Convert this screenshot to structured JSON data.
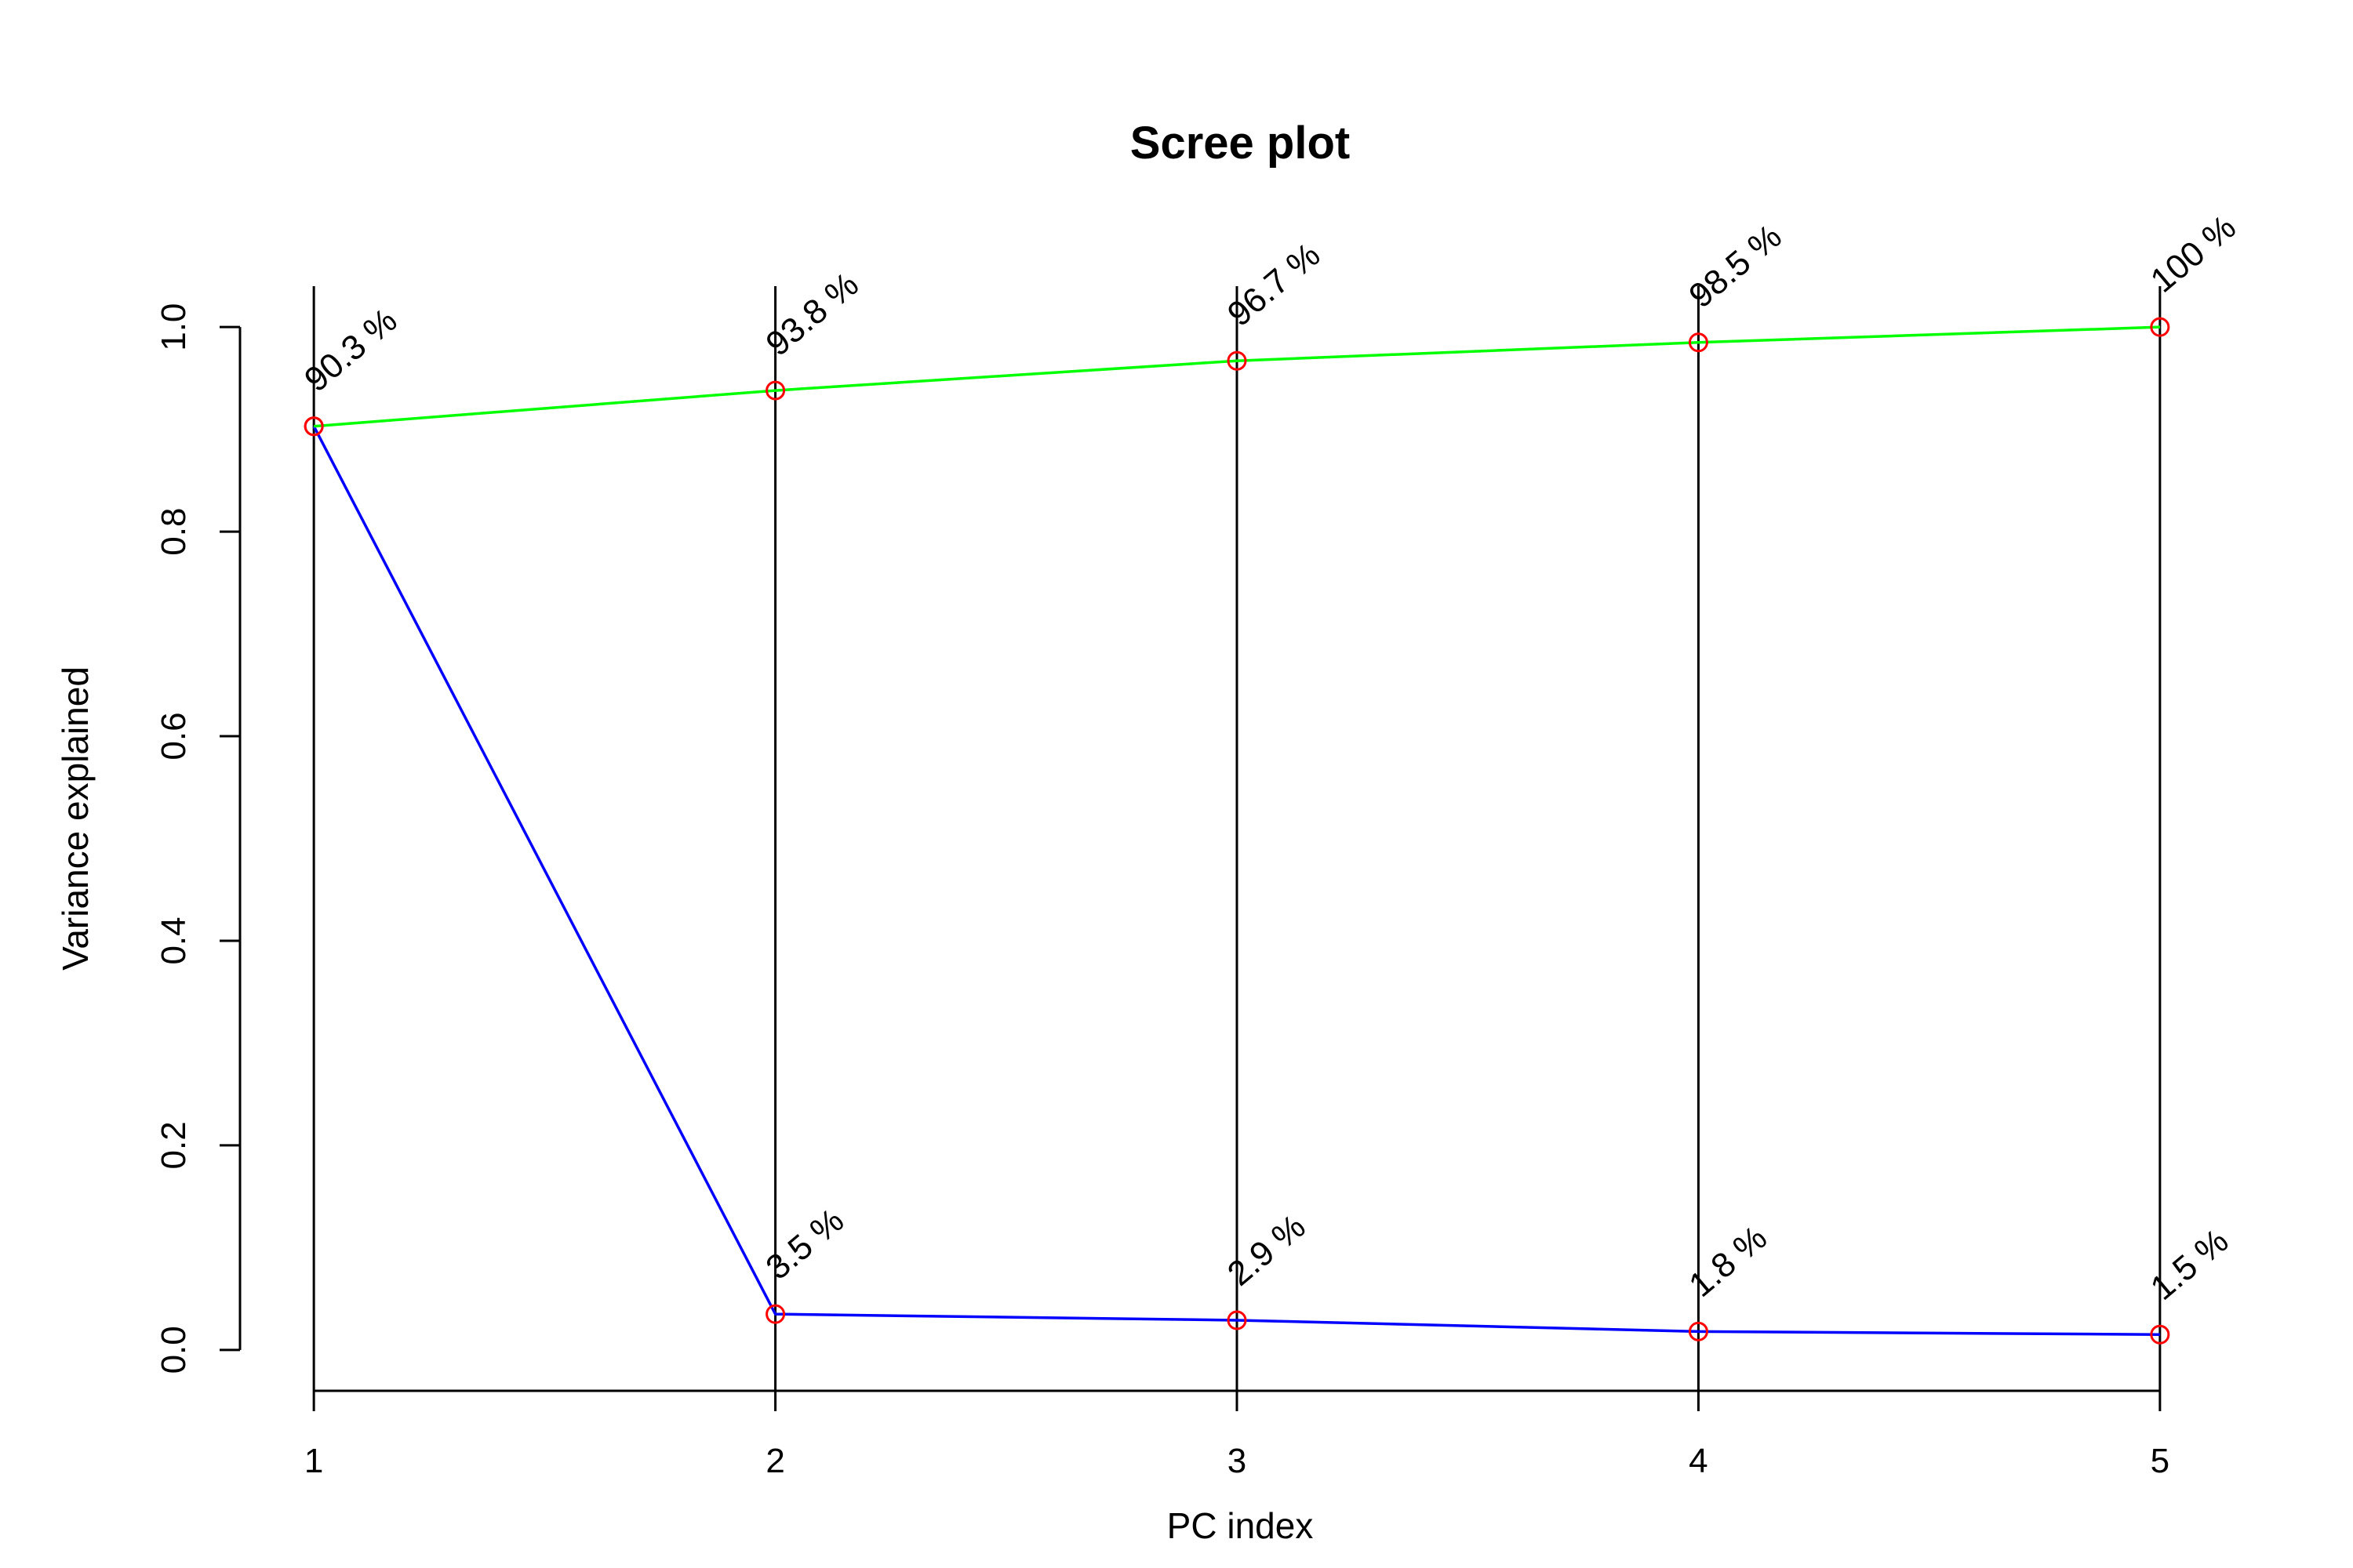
{
  "chart_data": {
    "type": "line",
    "title": "Scree plot",
    "xlabel": "PC index",
    "ylabel": "Variance explained",
    "x": [
      1,
      2,
      3,
      4,
      5
    ],
    "x_tick_labels": [
      "1",
      "2",
      "3",
      "4",
      "5"
    ],
    "y_tick_labels": [
      "0.0",
      "0.2",
      "0.4",
      "0.6",
      "0.8",
      "1.0"
    ],
    "y_ticks": [
      0.0,
      0.2,
      0.4,
      0.6,
      0.8,
      1.0
    ],
    "xlim": [
      0.84,
      5.16
    ],
    "ylim": [
      -0.04,
      1.04
    ],
    "grid": false,
    "vertical_lines_at_x": true,
    "series": [
      {
        "values": [
          0.903,
          0.035,
          0.029,
          0.018,
          0.015
        ],
        "labels": [
          "",
          "3.5 %",
          "2.9 %",
          "1.8 %",
          "1.5 %"
        ],
        "line_color": "#0000ff",
        "point_color": "#ff0000"
      },
      {
        "values": [
          0.903,
          0.938,
          0.967,
          0.985,
          1.0
        ],
        "labels": [
          "90.3 %",
          "93.8 %",
          "96.7 %",
          "98.5 %",
          "100 %"
        ],
        "line_color": "#00ff00",
        "point_color": "#ff0000"
      }
    ]
  }
}
